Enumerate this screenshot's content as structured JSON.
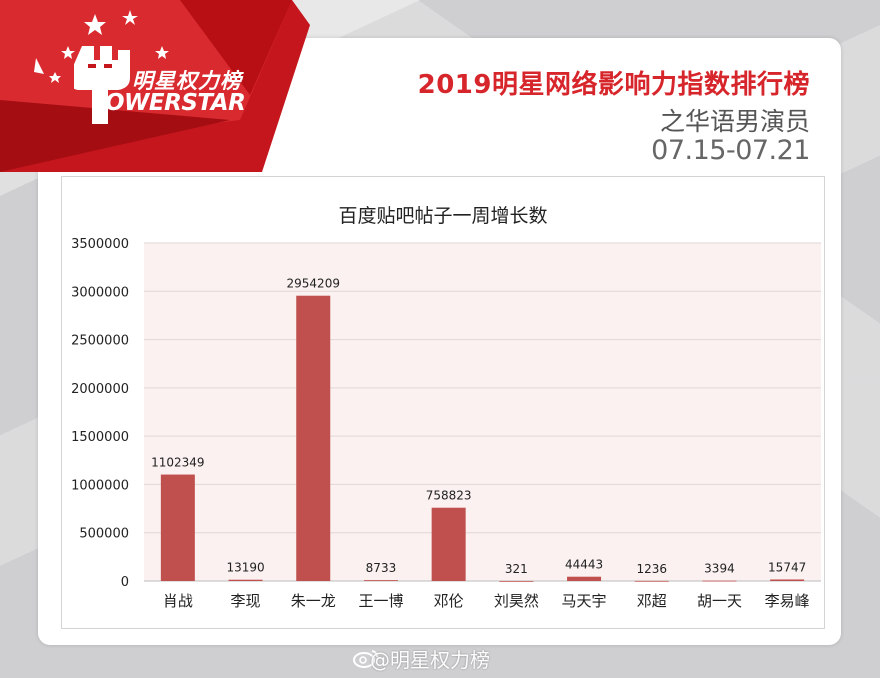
{
  "brand": {
    "logo_cn": "明星权力榜",
    "logo_en": "OWERSTAR",
    "colors": {
      "red": "#d7262b",
      "bar": "#c0504d",
      "plot_bg": "#fbf1f1"
    }
  },
  "header": {
    "title": "2019明星网络影响力指数排行榜",
    "subtitle": "之华语男演员",
    "date_range": "07.15-07.21"
  },
  "watermark": "@明星权力榜",
  "chart_data": {
    "type": "bar",
    "title": "百度贴吧帖子一周增长数",
    "xlabel": "",
    "ylabel": "",
    "categories": [
      "肖战",
      "李现",
      "朱一龙",
      "王一博",
      "邓伦",
      "刘昊然",
      "马天宇",
      "邓超",
      "胡一天",
      "李易峰"
    ],
    "values": [
      1102349,
      13190,
      2954209,
      8733,
      758823,
      321,
      44443,
      1236,
      3394,
      15747
    ],
    "data_labels": [
      "1102349",
      "13190",
      "2954209",
      "8733",
      "758823",
      "321",
      "44443",
      "1236",
      "3394",
      "15747"
    ],
    "ylim": [
      0,
      3500000
    ],
    "yticks": [
      "0",
      "500000",
      "1000000",
      "1500000",
      "2000000",
      "2500000",
      "3000000",
      "3500000"
    ],
    "grid": true,
    "legend": "none"
  }
}
